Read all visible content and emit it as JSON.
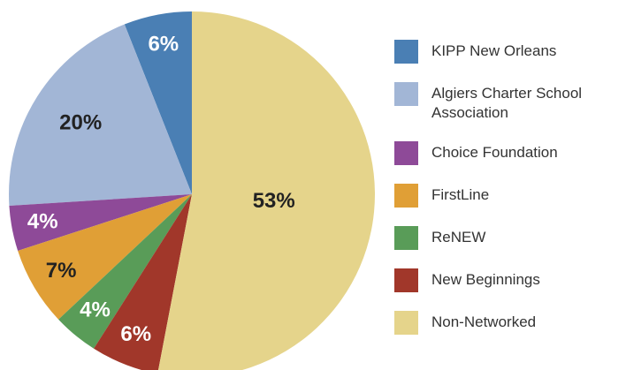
{
  "chart_data": {
    "type": "pie",
    "categories": [
      "KIPP New Orleans",
      "Algiers Charter School Association",
      "Choice Foundation",
      "FirstLine",
      "ReNEW",
      "New Beginnings",
      "Non-Networked"
    ],
    "values": [
      6,
      20,
      4,
      7,
      4,
      6,
      53
    ],
    "value_labels": [
      "6%",
      "20%",
      "4%",
      "7%",
      "4%",
      "6%",
      "53%"
    ],
    "colors": [
      "#4a7fb4",
      "#a2b6d6",
      "#8e4a98",
      "#e09f36",
      "#599c58",
      "#a1372a",
      "#e5d48b"
    ],
    "legend": "right"
  }
}
